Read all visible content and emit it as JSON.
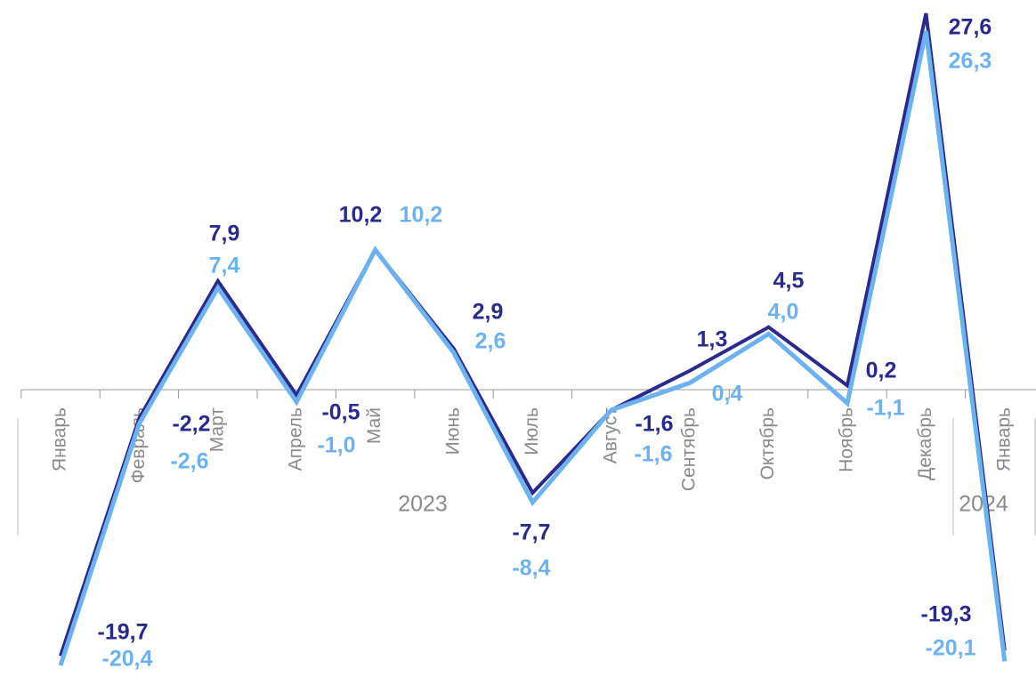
{
  "chart_data": {
    "type": "line",
    "groups": [
      {
        "label": "2023",
        "categories": [
          "Январь",
          "Февраль",
          "Март",
          "Апрель",
          "Май",
          "Июнь",
          "Июль",
          "Август",
          "Сентябрь",
          "Октябрь",
          "Ноябрь",
          "Декабрь"
        ]
      },
      {
        "label": "2024",
        "categories": [
          "Январь"
        ]
      }
    ],
    "series": [
      {
        "color": "#2b2a8c",
        "values": [
          -19.7,
          -2.2,
          7.9,
          -0.5,
          10.2,
          2.9,
          -7.7,
          -1.6,
          1.3,
          4.5,
          0.2,
          27.6,
          -19.3
        ],
        "value_labels": [
          "-19,7",
          "-2,2",
          "7,9",
          "-0,5",
          "10,2",
          "2,9",
          "-7,7",
          "-1,6",
          "1,3",
          "4,5",
          "0,2",
          "27,6",
          "-19,3"
        ]
      },
      {
        "color": "#6cb2f0",
        "values": [
          -20.4,
          -2.6,
          7.4,
          -1.0,
          10.2,
          2.6,
          -8.4,
          -1.6,
          0.4,
          4.0,
          -1.1,
          26.3,
          -20.1
        ],
        "value_labels": [
          "-20,4",
          "-2,6",
          "7,4",
          "-1,0",
          "10,2",
          "2,6",
          "-8,4",
          "-1,6",
          "0,4",
          "4,0",
          "-1,1",
          "26,3",
          "-20,1"
        ]
      }
    ],
    "grid": false
  }
}
